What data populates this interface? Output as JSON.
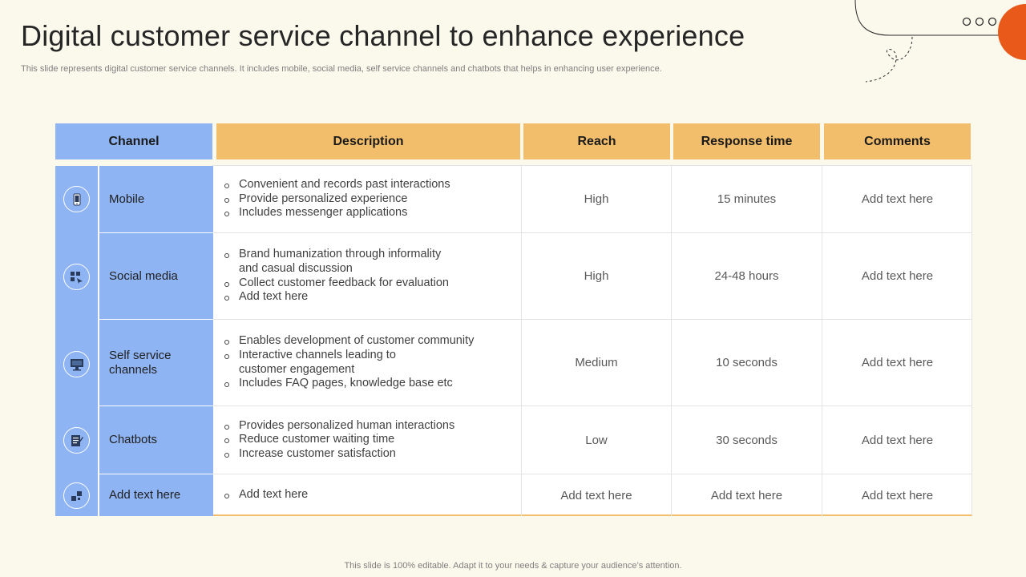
{
  "slide": {
    "title": "Digital customer service channel to enhance experience",
    "subtitle": "This slide represents digital customer service channels. It includes mobile, social media, self service channels and chatbots that helps in enhancing user experience.",
    "footer": "This slide is 100% editable. Adapt it to your needs & capture your audience’s attention."
  },
  "colors": {
    "header_blue": "#8fb4f3",
    "header_orange": "#f3be6c",
    "accent_orange": "#e8591a"
  },
  "table": {
    "headers": [
      "Channel",
      "Description",
      "Reach",
      "Response time",
      "Comments"
    ],
    "rows": [
      {
        "icon": "mobile-phone-icon",
        "channel": "Mobile",
        "description": [
          "Convenient and records past interactions",
          "Provide personalized experience",
          "Includes messenger applications"
        ],
        "reach": "High",
        "response_time": "15 minutes",
        "comments": "Add text here"
      },
      {
        "icon": "social-media-icon",
        "channel": "Social media",
        "description": [
          "Brand humanization through informality and casual discussion",
          "Collect customer feedback for evaluation",
          "Add text here"
        ],
        "reach": "High",
        "response_time": "24-48 hours",
        "comments": "Add text here"
      },
      {
        "icon": "monitor-icon",
        "channel": "Self service channels",
        "description": [
          "Enables development of customer community",
          "Interactive channels leading to customer engagement",
          "Includes FAQ pages, knowledge base etc"
        ],
        "reach": "Medium",
        "response_time": "10 seconds",
        "comments": "Add text here"
      },
      {
        "icon": "chatbot-icon",
        "channel": "Chatbots",
        "description": [
          "Provides personalized human interactions",
          "Reduce customer waiting time",
          "Increase customer satisfaction"
        ],
        "reach": "Low",
        "response_time": "30 seconds",
        "comments": "Add text here"
      },
      {
        "icon": "blocks-icon",
        "channel": "Add text here",
        "description": [
          "Add text here"
        ],
        "reach": "Add text here",
        "response_time": "Add text here",
        "comments": "Add text here"
      }
    ]
  }
}
